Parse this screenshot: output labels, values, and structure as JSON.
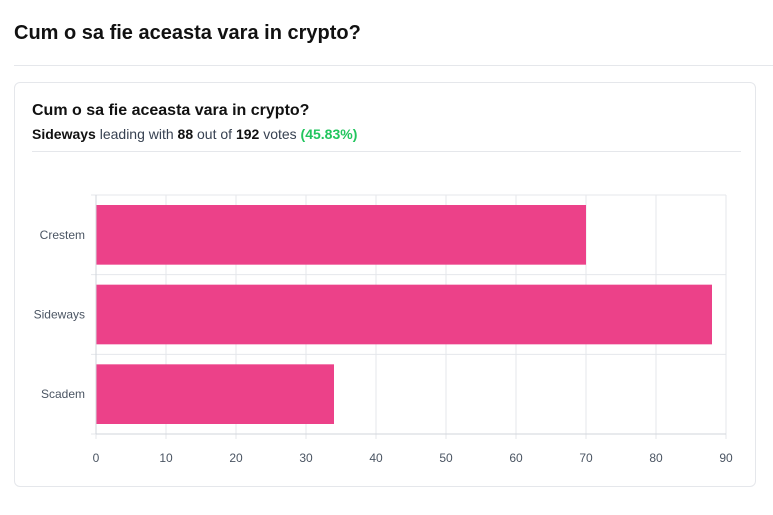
{
  "page": {
    "title": "Cum o sa fie aceasta vara in crypto?"
  },
  "summary": {
    "title": "Cum o sa fie aceasta vara in crypto?",
    "leader": "Sideways",
    "leading_with_text": "leading with",
    "leader_votes": "88",
    "out_of_text": "out of",
    "total_votes": "192",
    "votes_text": "votes",
    "percentage": "(45.83%)"
  },
  "colors": {
    "bar": "#ec4189",
    "grid": "#e5e7eb",
    "axis": "#d1d5db",
    "percentage": "#22c55e"
  },
  "chart_data": {
    "type": "bar",
    "orientation": "horizontal",
    "categories": [
      "Crestem",
      "Sideways",
      "Scadem"
    ],
    "values": [
      70,
      88,
      34
    ],
    "xlim": [
      0,
      90
    ],
    "xticks": [
      0,
      10,
      20,
      30,
      40,
      50,
      60,
      70,
      80,
      90
    ],
    "grid": true,
    "legend": "none"
  }
}
